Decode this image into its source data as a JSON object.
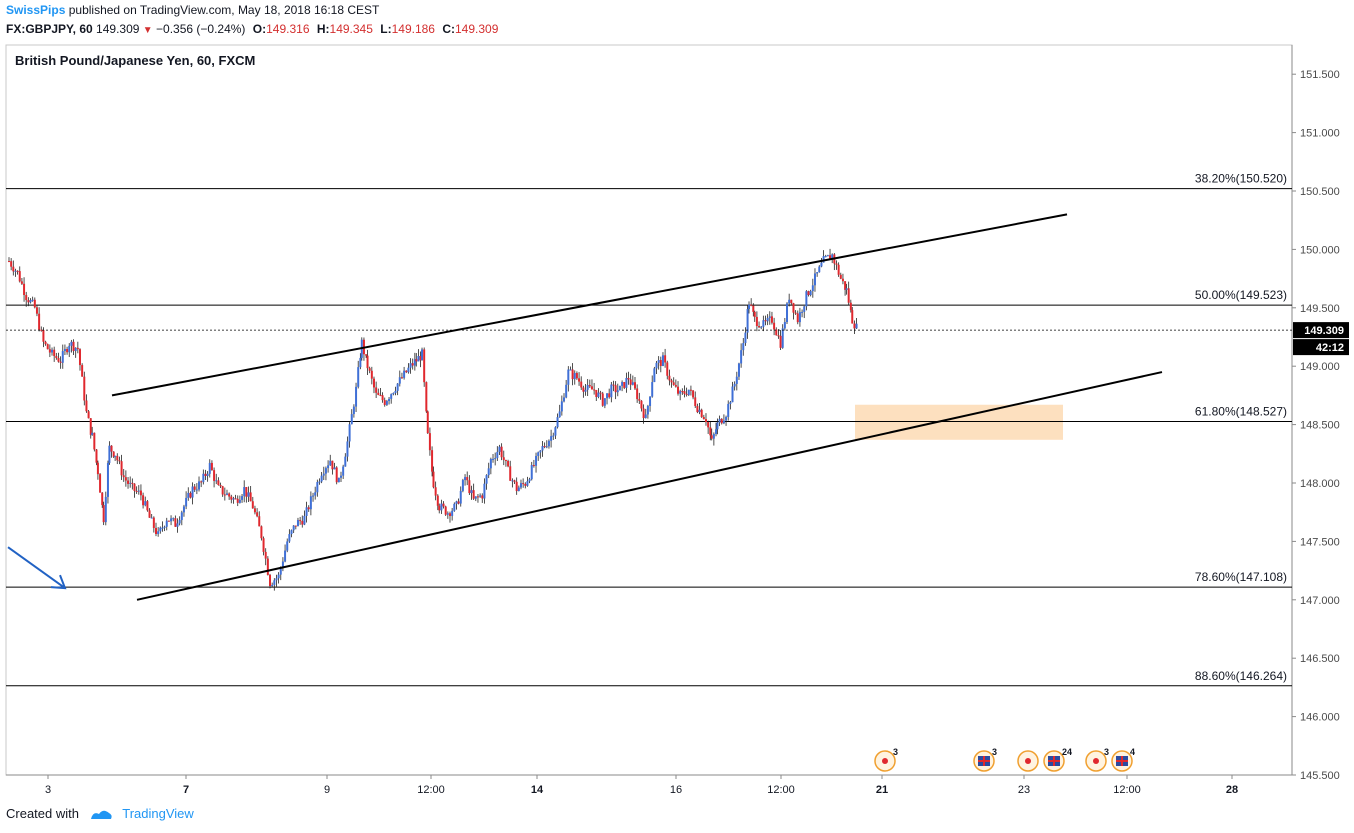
{
  "header": {
    "author": "SwissPips",
    "published_text": "published on TradingView.com, May 18, 2018 16:18 CEST",
    "symbol": "FX:GBPJPY, 60",
    "last": "149.309",
    "change": "−0.356 (−0.24%)",
    "o_label": "O:",
    "o_value": "149.316",
    "h_label": "H:",
    "h_value": "149.345",
    "l_label": "L:",
    "l_value": "149.186",
    "c_label": "C:",
    "c_value": "149.309"
  },
  "footer": {
    "created_with": "Created with",
    "brand": "TradingView"
  },
  "colors": {
    "up": "#3f6fd6",
    "down": "#e0282e",
    "zone": "#fde0bf",
    "arrow": "#2162c4",
    "accent": "#2196f3"
  },
  "chart_data": {
    "type": "candlestick",
    "title": "British Pound/Japanese Yen, 60, FXCM",
    "ylim": [
      145.5,
      151.75
    ],
    "y_ticks": [
      "151.500",
      "151.000",
      "150.500",
      "150.000",
      "149.500",
      "149.000",
      "148.500",
      "148.000",
      "147.500",
      "147.000",
      "146.500",
      "146.000",
      "145.500"
    ],
    "x_ticks": [
      {
        "label": "3",
        "bold": false
      },
      {
        "label": "7",
        "bold": true
      },
      {
        "label": "9",
        "bold": false
      },
      {
        "label": "12:00",
        "bold": false
      },
      {
        "label": "14",
        "bold": true
      },
      {
        "label": "16",
        "bold": false
      },
      {
        "label": "12:00",
        "bold": false
      },
      {
        "label": "21",
        "bold": true
      },
      {
        "label": "23",
        "bold": false
      },
      {
        "label": "12:00",
        "bold": false
      },
      {
        "label": "28",
        "bold": true
      }
    ],
    "last_price": "149.309",
    "countdown": "42:12",
    "fib_levels": [
      {
        "label": "38.20%(150.520)",
        "price": 150.52
      },
      {
        "label": "50.00%(149.523)",
        "price": 149.523
      },
      {
        "label": "61.80%(148.527)",
        "price": 148.527
      },
      {
        "label": "78.60%(147.108)",
        "price": 147.108
      },
      {
        "label": "88.60%(146.264)",
        "price": 146.264
      }
    ],
    "price_path": [
      [
        0,
        149.9
      ],
      [
        6,
        149.8
      ],
      [
        12,
        149.6
      ],
      [
        18,
        149.5
      ],
      [
        24,
        149.2
      ],
      [
        30,
        149.1
      ],
      [
        36,
        149.05
      ],
      [
        42,
        149.2
      ],
      [
        48,
        149.15
      ],
      [
        54,
        148.6
      ],
      [
        58,
        148.4
      ],
      [
        62,
        148.1
      ],
      [
        66,
        147.7
      ],
      [
        70,
        148.3
      ],
      [
        74,
        148.25
      ],
      [
        80,
        148.05
      ],
      [
        86,
        147.95
      ],
      [
        92,
        147.9
      ],
      [
        98,
        147.7
      ],
      [
        104,
        147.55
      ],
      [
        110,
        147.7
      ],
      [
        116,
        147.65
      ],
      [
        122,
        147.8
      ],
      [
        128,
        147.95
      ],
      [
        134,
        148.0
      ],
      [
        140,
        148.15
      ],
      [
        146,
        147.95
      ],
      [
        152,
        147.9
      ],
      [
        158,
        147.85
      ],
      [
        164,
        147.95
      ],
      [
        170,
        147.8
      ],
      [
        176,
        147.55
      ],
      [
        182,
        147.15
      ],
      [
        188,
        147.2
      ],
      [
        194,
        147.5
      ],
      [
        200,
        147.65
      ],
      [
        206,
        147.7
      ],
      [
        212,
        147.9
      ],
      [
        218,
        148.1
      ],
      [
        224,
        148.2
      ],
      [
        230,
        148.0
      ],
      [
        236,
        148.35
      ],
      [
        242,
        148.8
      ],
      [
        246,
        149.2
      ],
      [
        250,
        149.0
      ],
      [
        256,
        148.75
      ],
      [
        262,
        148.7
      ],
      [
        268,
        148.8
      ],
      [
        274,
        148.9
      ],
      [
        280,
        149.0
      ],
      [
        284,
        149.05
      ],
      [
        288,
        149.1
      ],
      [
        292,
        148.4
      ],
      [
        296,
        148.0
      ],
      [
        300,
        147.8
      ],
      [
        306,
        147.75
      ],
      [
        312,
        147.8
      ],
      [
        318,
        148.05
      ],
      [
        324,
        147.85
      ],
      [
        330,
        147.9
      ],
      [
        336,
        148.2
      ],
      [
        342,
        148.3
      ],
      [
        348,
        148.1
      ],
      [
        354,
        147.95
      ],
      [
        360,
        148.0
      ],
      [
        366,
        148.15
      ],
      [
        372,
        148.3
      ],
      [
        378,
        148.4
      ],
      [
        384,
        148.6
      ],
      [
        390,
        148.95
      ],
      [
        396,
        148.9
      ],
      [
        402,
        148.8
      ],
      [
        408,
        148.8
      ],
      [
        414,
        148.7
      ],
      [
        420,
        148.8
      ],
      [
        426,
        148.8
      ],
      [
        432,
        148.9
      ],
      [
        438,
        148.75
      ],
      [
        444,
        148.55
      ],
      [
        450,
        149.0
      ],
      [
        456,
        149.05
      ],
      [
        462,
        148.85
      ],
      [
        468,
        148.75
      ],
      [
        474,
        148.8
      ],
      [
        480,
        148.65
      ],
      [
        486,
        148.55
      ],
      [
        490,
        148.35
      ],
      [
        494,
        148.5
      ],
      [
        500,
        148.6
      ],
      [
        506,
        148.85
      ],
      [
        512,
        149.2
      ],
      [
        516,
        149.55
      ],
      [
        520,
        149.4
      ],
      [
        526,
        149.35
      ],
      [
        532,
        149.4
      ],
      [
        538,
        149.2
      ],
      [
        544,
        149.6
      ],
      [
        550,
        149.4
      ],
      [
        556,
        149.6
      ],
      [
        562,
        149.75
      ],
      [
        568,
        149.9
      ],
      [
        574,
        149.95
      ],
      [
        580,
        149.75
      ],
      [
        584,
        149.65
      ],
      [
        588,
        149.4
      ],
      [
        592,
        149.309
      ]
    ],
    "channel_upper": [
      [
        30,
        148.75
      ],
      [
        326,
        150.3
      ]
    ],
    "channel_lower": [
      [
        56,
        147.0
      ],
      [
        384,
        148.95
      ]
    ],
    "demand_zone": {
      "price_top": 148.67,
      "price_bottom": 148.37,
      "x_start": 518,
      "x_end": 652
    },
    "arrow_marker": {
      "from": [
        0,
        147.45
      ],
      "to": [
        15,
        147.1
      ]
    },
    "events": [
      {
        "kind": "circle",
        "x": 456,
        "count": "3"
      },
      {
        "kind": "flag",
        "x": 503,
        "count": "3"
      },
      {
        "kind": "circle",
        "x": 536,
        "count": ""
      },
      {
        "kind": "flag",
        "x": 552,
        "count": "24"
      },
      {
        "kind": "circle",
        "x": 572,
        "count": "3"
      },
      {
        "kind": "flag",
        "x": 588,
        "count": "4"
      }
    ]
  }
}
